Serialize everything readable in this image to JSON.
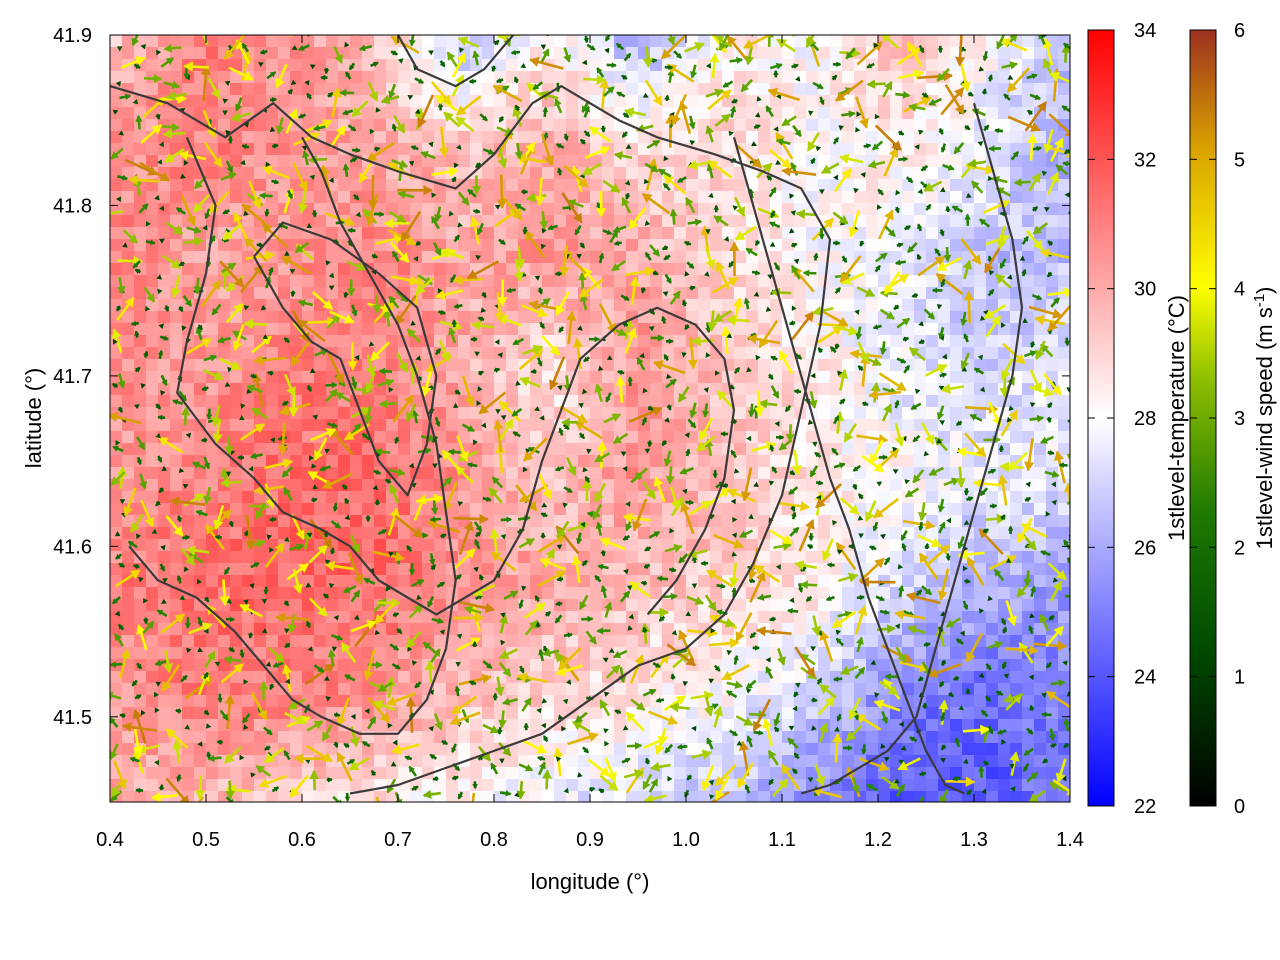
{
  "chart_data": {
    "type": "heatmap",
    "xlabel": "longitude (°)",
    "ylabel": "latitude (°)",
    "xlim": [
      0.4,
      1.4
    ],
    "ylim": [
      41.45,
      41.9
    ],
    "x_ticks": [
      "0.4",
      "0.5",
      "0.6",
      "0.7",
      "0.8",
      "0.9",
      "1.0",
      "1.1",
      "1.2",
      "1.3",
      "1.4"
    ],
    "x_tick_values": [
      0.4,
      0.5,
      0.6,
      0.7,
      0.8,
      0.9,
      1.0,
      1.1,
      1.2,
      1.3,
      1.4
    ],
    "y_ticks": [
      "41.5",
      "41.6",
      "41.7",
      "41.8",
      "41.9"
    ],
    "y_tick_values": [
      41.5,
      41.6,
      41.7,
      41.8,
      41.9
    ],
    "grid": false,
    "temperature_colorbar": {
      "label": "1stlevel-temperature (°C)",
      "range": [
        22,
        34
      ],
      "ticks": [
        "22",
        "24",
        "26",
        "28",
        "30",
        "32",
        "34"
      ],
      "tick_values": [
        22,
        24,
        26,
        28,
        30,
        32,
        34
      ],
      "colors": [
        "#0000ff",
        "#ffffff",
        "#ff0000"
      ]
    },
    "wind_colorbar": {
      "label_main": "1stlevel-wind speed (m s",
      "label_sup": "-1",
      "label_end": ")",
      "range": [
        0,
        6
      ],
      "ticks": [
        "0",
        "1",
        "2",
        "3",
        "4",
        "5",
        "6"
      ],
      "tick_values": [
        0,
        1,
        2,
        3,
        4,
        5,
        6
      ],
      "colors": [
        "#000000",
        "#005a00",
        "#2a8a00",
        "#8fbf00",
        "#ffff00",
        "#d9a000",
        "#9c3020"
      ]
    },
    "temperature_field": [
      [
        29.5,
        31.0,
        30.5,
        29.5,
        26.5,
        28.5,
        26.0,
        28.5,
        28.0,
        29.5,
        28.0,
        26.5
      ],
      [
        30.5,
        31.0,
        30.5,
        30.0,
        29.5,
        30.0,
        29.0,
        29.0,
        28.0,
        28.5,
        27.5,
        26.0
      ],
      [
        31.0,
        30.0,
        30.5,
        31.0,
        30.0,
        30.5,
        30.0,
        29.0,
        28.0,
        27.5,
        26.5,
        26.5
      ],
      [
        30.5,
        30.5,
        31.0,
        31.0,
        30.0,
        28.5,
        30.5,
        29.5,
        28.5,
        27.5,
        27.0,
        27.5
      ],
      [
        30.5,
        31.0,
        31.5,
        31.5,
        30.5,
        29.5,
        30.5,
        29.5,
        28.5,
        28.0,
        27.5,
        27.5
      ],
      [
        31.0,
        31.5,
        31.5,
        31.5,
        30.5,
        30.0,
        29.5,
        29.0,
        28.5,
        27.0,
        26.0,
        25.5
      ],
      [
        30.5,
        31.0,
        31.0,
        30.5,
        29.5,
        29.0,
        28.5,
        28.0,
        27.0,
        25.0,
        24.5,
        25.0
      ],
      [
        30.0,
        29.5,
        29.0,
        28.5,
        28.0,
        27.5,
        27.0,
        26.5,
        25.0,
        24.0,
        24.0,
        25.0
      ]
    ],
    "contours": [
      [
        [
          0.4,
          41.87
        ],
        [
          0.46,
          41.86
        ],
        [
          0.52,
          41.84
        ],
        [
          0.57,
          41.86
        ],
        [
          0.61,
          41.84
        ],
        [
          0.65,
          41.83
        ],
        [
          0.7,
          41.82
        ],
        [
          0.76,
          41.81
        ],
        [
          0.8,
          41.83
        ],
        [
          0.84,
          41.86
        ],
        [
          0.87,
          41.87
        ],
        [
          0.9,
          41.86
        ],
        [
          0.93,
          41.85
        ],
        [
          0.97,
          41.84
        ],
        [
          1.03,
          41.83
        ],
        [
          1.08,
          41.82
        ],
        [
          1.12,
          41.81
        ],
        [
          1.15,
          41.78
        ],
        [
          1.14,
          41.73
        ],
        [
          1.12,
          41.68
        ],
        [
          1.1,
          41.63
        ],
        [
          1.07,
          41.59
        ],
        [
          1.04,
          41.56
        ],
        [
          1.0,
          41.54
        ],
        [
          0.95,
          41.53
        ],
        [
          0.9,
          41.51
        ],
        [
          0.85,
          41.49
        ],
        [
          0.8,
          41.48
        ],
        [
          0.75,
          41.47
        ],
        [
          0.7,
          41.46
        ],
        [
          0.65,
          41.455
        ]
      ],
      [
        [
          0.48,
          41.84
        ],
        [
          0.51,
          41.8
        ],
        [
          0.5,
          41.76
        ],
        [
          0.48,
          41.72
        ],
        [
          0.47,
          41.69
        ],
        [
          0.51,
          41.66
        ],
        [
          0.55,
          41.64
        ],
        [
          0.58,
          41.62
        ],
        [
          0.62,
          41.61
        ],
        [
          0.65,
          41.6
        ],
        [
          0.68,
          41.58
        ],
        [
          0.71,
          41.57
        ],
        [
          0.74,
          41.56
        ],
        [
          0.77,
          41.57
        ],
        [
          0.8,
          41.58
        ],
        [
          0.83,
          41.61
        ],
        [
          0.85,
          41.65
        ],
        [
          0.87,
          41.68
        ],
        [
          0.89,
          41.71
        ],
        [
          0.93,
          41.73
        ],
        [
          0.97,
          41.74
        ],
        [
          1.01,
          41.73
        ],
        [
          1.04,
          41.71
        ],
        [
          1.05,
          41.68
        ],
        [
          1.04,
          41.64
        ],
        [
          1.02,
          41.61
        ],
        [
          0.99,
          41.58
        ],
        [
          0.96,
          41.56
        ]
      ],
      [
        [
          0.42,
          41.6
        ],
        [
          0.45,
          41.58
        ],
        [
          0.49,
          41.57
        ],
        [
          0.53,
          41.55
        ],
        [
          0.56,
          41.53
        ],
        [
          0.59,
          41.51
        ],
        [
          0.62,
          41.5
        ],
        [
          0.66,
          41.49
        ],
        [
          0.7,
          41.49
        ],
        [
          0.73,
          41.51
        ],
        [
          0.75,
          41.54
        ],
        [
          0.76,
          41.58
        ],
        [
          0.75,
          41.62
        ],
        [
          0.74,
          41.66
        ],
        [
          0.72,
          41.7
        ],
        [
          0.7,
          41.73
        ],
        [
          0.67,
          41.76
        ],
        [
          0.64,
          41.79
        ],
        [
          0.62,
          41.82
        ],
        [
          0.6,
          41.84
        ]
      ],
      [
        [
          1.05,
          41.84
        ],
        [
          1.07,
          41.8
        ],
        [
          1.09,
          41.76
        ],
        [
          1.11,
          41.72
        ],
        [
          1.13,
          41.68
        ],
        [
          1.15,
          41.64
        ],
        [
          1.17,
          41.61
        ],
        [
          1.19,
          41.57
        ],
        [
          1.21,
          41.54
        ],
        [
          1.23,
          41.51
        ],
        [
          1.25,
          41.48
        ],
        [
          1.27,
          41.46
        ],
        [
          1.29,
          41.455
        ]
      ],
      [
        [
          1.3,
          41.86
        ],
        [
          1.32,
          41.82
        ],
        [
          1.34,
          41.78
        ],
        [
          1.35,
          41.74
        ],
        [
          1.34,
          41.7
        ],
        [
          1.32,
          41.66
        ],
        [
          1.3,
          41.62
        ],
        [
          1.28,
          41.58
        ],
        [
          1.26,
          41.54
        ],
        [
          1.24,
          41.5
        ],
        [
          1.21,
          41.48
        ],
        [
          1.18,
          41.47
        ],
        [
          1.15,
          41.46
        ],
        [
          1.12,
          41.455
        ]
      ],
      [
        [
          0.7,
          41.9
        ],
        [
          0.72,
          41.88
        ],
        [
          0.76,
          41.87
        ],
        [
          0.79,
          41.88
        ],
        [
          0.82,
          41.9
        ]
      ],
      [
        [
          0.55,
          41.77
        ],
        [
          0.58,
          41.74
        ],
        [
          0.61,
          41.72
        ],
        [
          0.64,
          41.71
        ],
        [
          0.66,
          41.68
        ],
        [
          0.68,
          41.65
        ],
        [
          0.71,
          41.63
        ],
        [
          0.73,
          41.66
        ],
        [
          0.74,
          41.7
        ],
        [
          0.72,
          41.74
        ],
        [
          0.68,
          41.76
        ],
        [
          0.63,
          41.78
        ],
        [
          0.58,
          41.79
        ],
        [
          0.55,
          41.77
        ]
      ]
    ],
    "wind_field_grid": {
      "x_start": 0.41,
      "x_step": 0.022,
      "nx": 46,
      "y_start": 41.455,
      "y_step": 0.0095,
      "ny": 48
    }
  }
}
